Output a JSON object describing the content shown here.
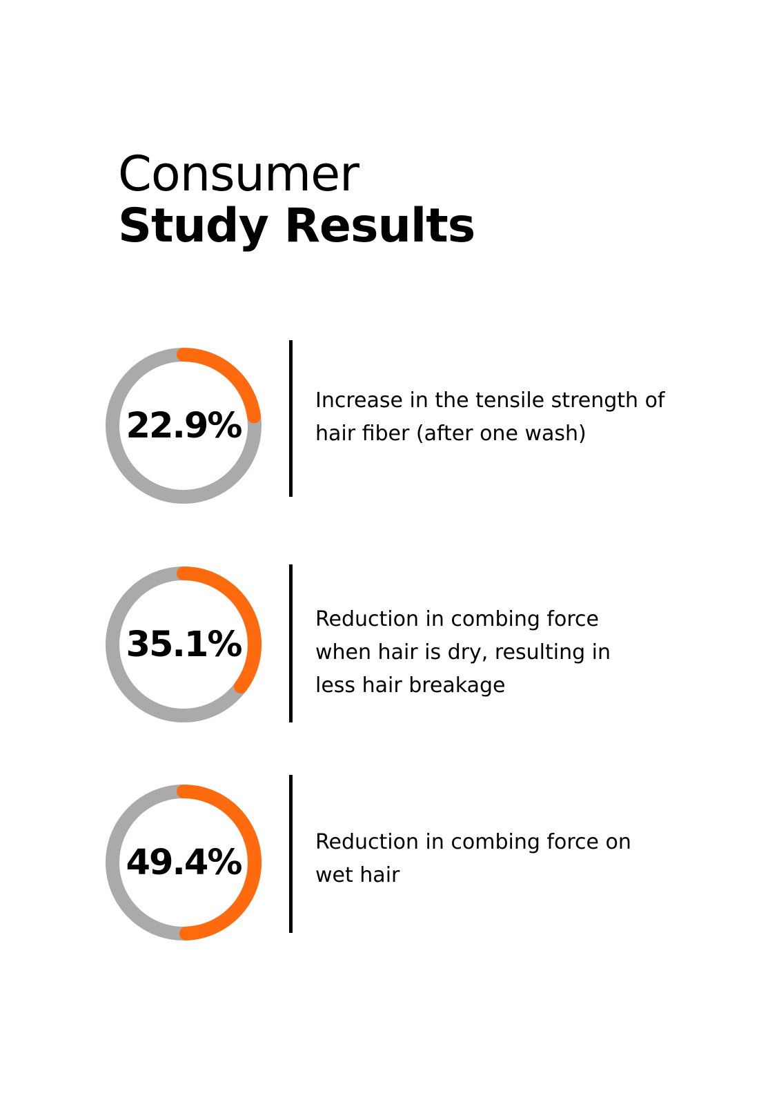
{
  "heading": {
    "line1": "Consumer",
    "line2": "Study Results"
  },
  "colors": {
    "track": "#abaaa9",
    "progress": "#ff6a0f",
    "text": "#000000",
    "divider": "#000000"
  },
  "chart_data": [
    {
      "type": "donut",
      "value": 22.9,
      "max": 100,
      "label": "22.9%",
      "description": "Increase in the tensile strength of hair fiber (after one wash)"
    },
    {
      "type": "donut",
      "value": 35.1,
      "max": 100,
      "label": "35.1%",
      "description": "Reduction in combing force when hair is dry, resulting in less hair breakage"
    },
    {
      "type": "donut",
      "value": 49.4,
      "max": 100,
      "label": "49.4%",
      "description": "Reduction in combing force on wet hair"
    }
  ]
}
